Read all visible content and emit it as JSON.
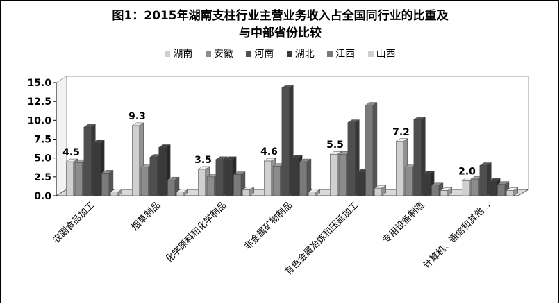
{
  "chart_data": {
    "type": "bar",
    "title_lines": [
      "图1：2015年湖南支柱行业主营业务收入占全国同行业的比重及",
      "与中部省份比较"
    ],
    "categories": [
      "农副食品加工",
      "烟草制品",
      "化学原料和化学制品",
      "非金属矿物制品",
      "有色金属冶炼和压延加工",
      "专用设备制造",
      "计算机、通信和其他..."
    ],
    "series": [
      {
        "name": "湖南",
        "color": "#d0d0d0",
        "values": [
          4.5,
          9.3,
          3.5,
          4.6,
          5.5,
          7.2,
          2.0
        ]
      },
      {
        "name": "安徽",
        "color": "#8c8c8c",
        "values": [
          4.4,
          3.8,
          2.5,
          3.9,
          5.5,
          3.8,
          2.2
        ]
      },
      {
        "name": "河南",
        "color": "#4f4f4f",
        "values": [
          9.1,
          5.1,
          4.8,
          14.3,
          9.7,
          10.1,
          4.0
        ]
      },
      {
        "name": "湖北",
        "color": "#3a3a3a",
        "values": [
          7.0,
          6.4,
          4.8,
          5.0,
          3.1,
          2.9,
          1.9
        ]
      },
      {
        "name": "江西",
        "color": "#7a7a7a",
        "values": [
          3.0,
          2.1,
          2.8,
          4.5,
          12.0,
          1.4,
          1.5
        ]
      },
      {
        "name": "山西",
        "color": "#cfcfcf",
        "values": [
          0.5,
          0.5,
          0.8,
          0.5,
          1.0,
          0.7,
          0.7
        ]
      }
    ],
    "data_labels": [
      "4.5",
      "9.3",
      "3.5",
      "4.6",
      "5.5",
      "7.2",
      "2.0"
    ],
    "y_ticks": [
      "0.0",
      "2.5",
      "5.0",
      "7.5",
      "10.0",
      "12.5",
      "15.0"
    ],
    "ylim": [
      0,
      15
    ],
    "grid": false,
    "legend_position": "top"
  }
}
